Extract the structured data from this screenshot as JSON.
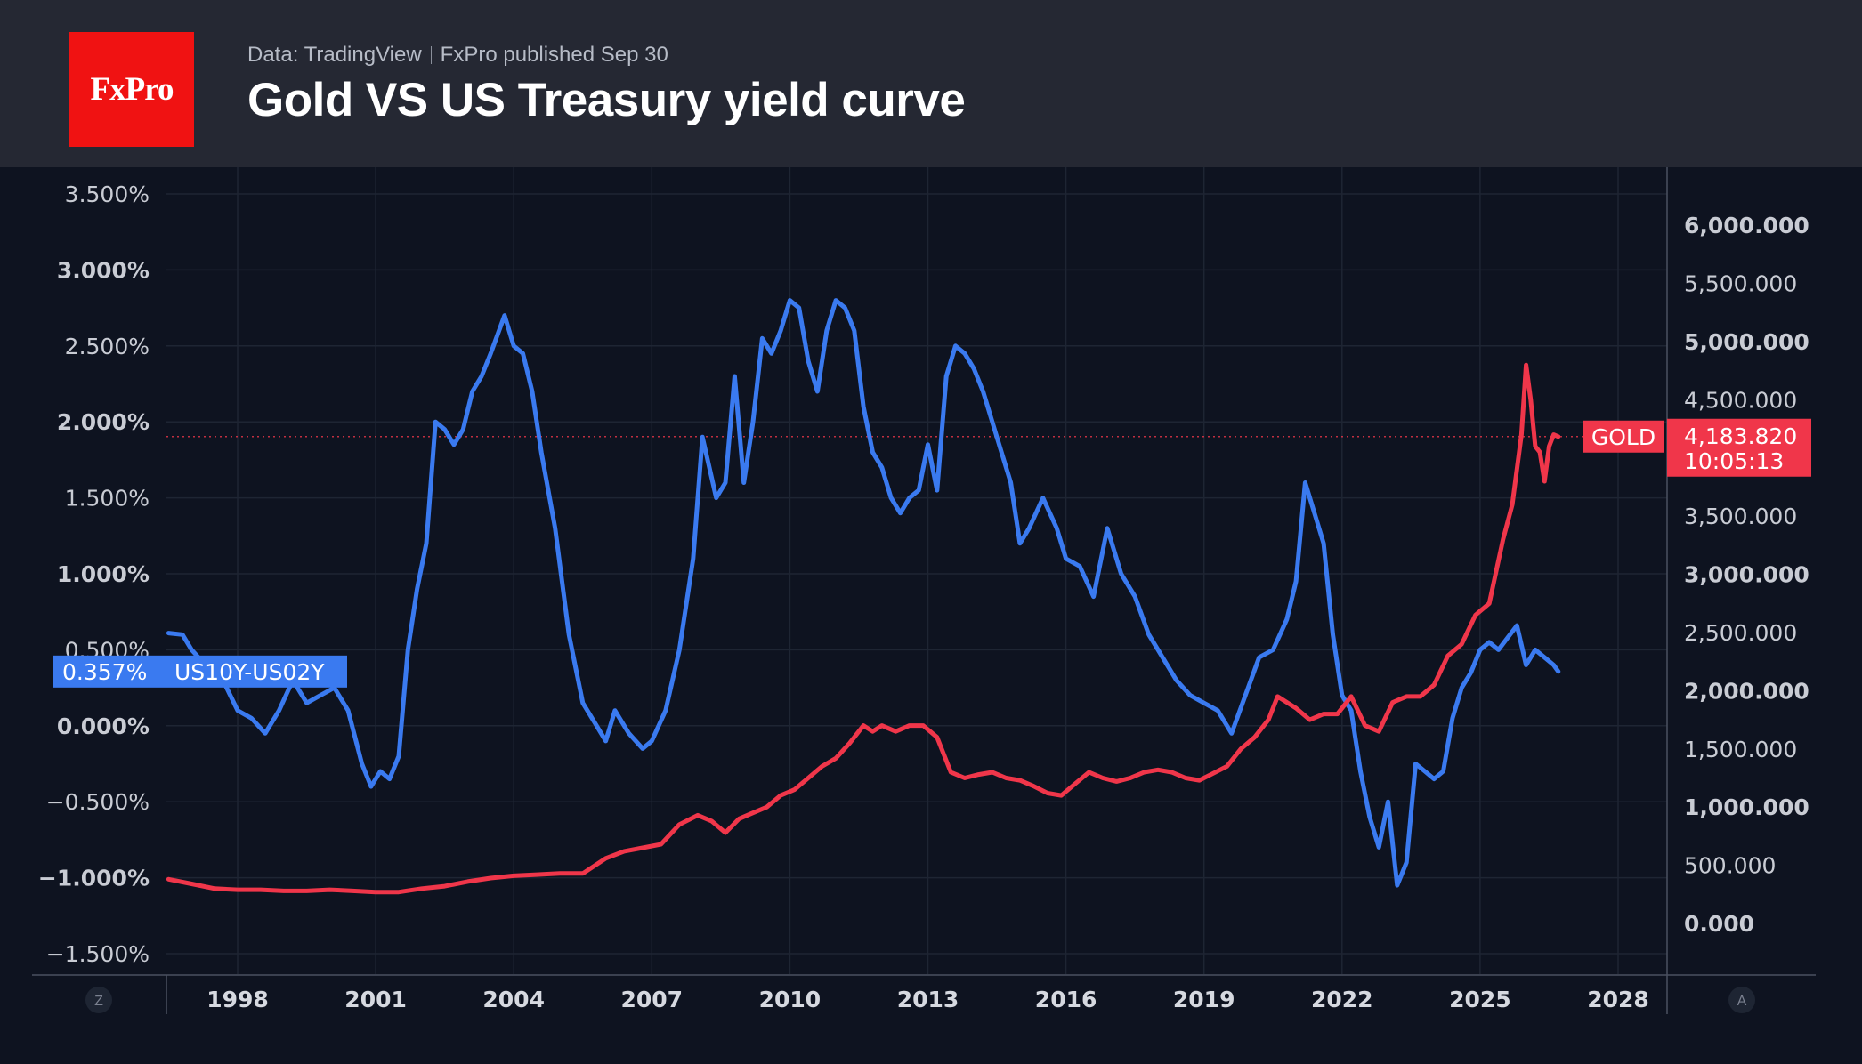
{
  "header": {
    "brand": "FxPro",
    "source": "Data: TradingView",
    "published": "FxPro published Sep 30",
    "title": "Gold VS US Treasury yield curve"
  },
  "colors": {
    "spread": "#3a7af0",
    "gold": "#f0364a",
    "background": "#0e1320",
    "header": "#252833",
    "grid": "#1e2533",
    "logo": "#f01212"
  },
  "icons": {
    "left_scale": "Z",
    "right_scale": "A"
  },
  "chart_data": {
    "type": "line",
    "x_ticks": [
      "1998",
      "2001",
      "2004",
      "2007",
      "2010",
      "2013",
      "2016",
      "2019",
      "2022",
      "2025",
      "2028"
    ],
    "x_tick_values": [
      1998,
      2001,
      2004,
      2007,
      2010,
      2013,
      2016,
      2019,
      2022,
      2025,
      2028
    ],
    "xlim": [
      1996.5,
      2029.0
    ],
    "left_axis": {
      "ticks": [
        "3.500%",
        "3.000%",
        "2.500%",
        "2.000%",
        "1.500%",
        "1.000%",
        "0.500%",
        "0.000%",
        "−0.500%",
        "−1.000%",
        "−1.500%"
      ],
      "tick_values": [
        3.5,
        3.0,
        2.5,
        2.0,
        1.5,
        1.0,
        0.5,
        0.0,
        -0.5,
        -1.0,
        -1.5
      ],
      "ylim": [
        -1.68,
        3.6
      ]
    },
    "right_axis": {
      "ticks": [
        "6,000.000",
        "5,500.000",
        "5,000.000",
        "4,500.000",
        "4,000.000",
        "3,500.000",
        "3,000.000",
        "2,500.000",
        "2,000.000",
        "1,500.000",
        "1,000.000",
        "500.000",
        "0.000"
      ],
      "tick_values": [
        6000,
        5500,
        5000,
        4500,
        4000,
        3500,
        3000,
        2500,
        2000,
        1500,
        1000,
        500,
        0
      ]
    },
    "series": [
      {
        "name": "US10Y-US02Y",
        "axis": "left",
        "last_value_label": "0.357%",
        "x": [
          1996.5,
          1996.8,
          1997.0,
          1997.3,
          1997.6,
          1998.0,
          1998.3,
          1998.6,
          1998.9,
          1999.2,
          1999.5,
          1999.8,
          2000.1,
          2000.4,
          2000.7,
          2000.9,
          2001.1,
          2001.3,
          2001.5,
          2001.7,
          2001.9,
          2002.1,
          2002.3,
          2002.5,
          2002.7,
          2002.9,
          2003.1,
          2003.3,
          2003.5,
          2003.8,
          2004.0,
          2004.2,
          2004.4,
          2004.6,
          2004.9,
          2005.2,
          2005.5,
          2005.8,
          2006.0,
          2006.2,
          2006.5,
          2006.8,
          2007.0,
          2007.3,
          2007.6,
          2007.9,
          2008.1,
          2008.4,
          2008.6,
          2008.8,
          2009.0,
          2009.2,
          2009.4,
          2009.6,
          2009.8,
          2010.0,
          2010.2,
          2010.4,
          2010.6,
          2010.8,
          2011.0,
          2011.2,
          2011.4,
          2011.6,
          2011.8,
          2012.0,
          2012.2,
          2012.4,
          2012.6,
          2012.8,
          2013.0,
          2013.2,
          2013.4,
          2013.6,
          2013.8,
          2014.0,
          2014.2,
          2014.5,
          2014.8,
          2015.0,
          2015.2,
          2015.5,
          2015.8,
          2016.0,
          2016.3,
          2016.6,
          2016.9,
          2017.2,
          2017.5,
          2017.8,
          2018.1,
          2018.4,
          2018.7,
          2019.0,
          2019.3,
          2019.6,
          2019.9,
          2020.2,
          2020.5,
          2020.8,
          2021.0,
          2021.2,
          2021.4,
          2021.6,
          2021.8,
          2022.0,
          2022.2,
          2022.4,
          2022.6,
          2022.8,
          2023.0,
          2023.2,
          2023.4,
          2023.6,
          2023.8,
          2024.0,
          2024.2,
          2024.4,
          2024.6,
          2024.8,
          2025.0,
          2025.2,
          2025.4,
          2025.6,
          2025.8,
          2026.0,
          2026.2,
          2026.4,
          2026.6,
          2026.7
        ],
        "values": [
          0.61,
          0.6,
          0.5,
          0.4,
          0.35,
          0.1,
          0.05,
          -0.05,
          0.1,
          0.3,
          0.15,
          0.2,
          0.25,
          0.1,
          -0.25,
          -0.4,
          -0.3,
          -0.35,
          -0.2,
          0.5,
          0.9,
          1.2,
          2.0,
          1.95,
          1.85,
          1.95,
          2.2,
          2.3,
          2.45,
          2.7,
          2.5,
          2.45,
          2.2,
          1.8,
          1.3,
          0.6,
          0.15,
          0.0,
          -0.1,
          0.1,
          -0.05,
          -0.15,
          -0.1,
          0.1,
          0.5,
          1.1,
          1.9,
          1.5,
          1.6,
          2.3,
          1.6,
          2.0,
          2.55,
          2.45,
          2.6,
          2.8,
          2.75,
          2.4,
          2.2,
          2.6,
          2.8,
          2.75,
          2.6,
          2.1,
          1.8,
          1.7,
          1.5,
          1.4,
          1.5,
          1.55,
          1.85,
          1.55,
          2.3,
          2.5,
          2.45,
          2.35,
          2.2,
          1.9,
          1.6,
          1.2,
          1.3,
          1.5,
          1.3,
          1.1,
          1.05,
          0.85,
          1.3,
          1.0,
          0.85,
          0.6,
          0.45,
          0.3,
          0.2,
          0.15,
          0.1,
          -0.05,
          0.2,
          0.45,
          0.5,
          0.7,
          0.95,
          1.6,
          1.4,
          1.2,
          0.6,
          0.2,
          0.1,
          -0.3,
          -0.6,
          -0.8,
          -0.5,
          -1.05,
          -0.9,
          -0.25,
          -0.3,
          -0.35,
          -0.3,
          0.05,
          0.25,
          0.35,
          0.5,
          0.55,
          0.5,
          0.58,
          0.66,
          0.4,
          0.5,
          0.45,
          0.4,
          0.357
        ]
      },
      {
        "name": "GOLD",
        "axis": "right",
        "last_value_label": "4,183.820",
        "countdown": "10:05:13",
        "x": [
          1996.5,
          1997.0,
          1997.5,
          1998.0,
          1998.5,
          1999.0,
          1999.5,
          2000.0,
          2000.5,
          2001.0,
          2001.5,
          2002.0,
          2002.5,
          2003.0,
          2003.5,
          2004.0,
          2004.5,
          2005.0,
          2005.5,
          2006.0,
          2006.4,
          2006.8,
          2007.2,
          2007.6,
          2008.0,
          2008.3,
          2008.6,
          2008.9,
          2009.2,
          2009.5,
          2009.8,
          2010.1,
          2010.4,
          2010.7,
          2011.0,
          2011.3,
          2011.6,
          2011.8,
          2012.0,
          2012.3,
          2012.6,
          2012.9,
          2013.2,
          2013.5,
          2013.8,
          2014.1,
          2014.4,
          2014.7,
          2015.0,
          2015.3,
          2015.6,
          2015.9,
          2016.2,
          2016.5,
          2016.8,
          2017.1,
          2017.4,
          2017.7,
          2018.0,
          2018.3,
          2018.6,
          2018.9,
          2019.2,
          2019.5,
          2019.8,
          2020.1,
          2020.4,
          2020.6,
          2020.8,
          2021.0,
          2021.3,
          2021.6,
          2021.9,
          2022.2,
          2022.5,
          2022.8,
          2023.1,
          2023.4,
          2023.7,
          2024.0,
          2024.3,
          2024.6,
          2024.9,
          2025.2,
          2025.5,
          2025.7,
          2025.9,
          2026.0,
          2026.1,
          2026.2,
          2026.3,
          2026.4,
          2026.5,
          2026.6,
          2026.7
        ],
        "values": [
          380,
          340,
          300,
          290,
          290,
          280,
          280,
          290,
          280,
          270,
          270,
          300,
          320,
          360,
          390,
          410,
          420,
          430,
          430,
          560,
          620,
          650,
          680,
          850,
          930,
          880,
          780,
          900,
          950,
          1000,
          1100,
          1150,
          1250,
          1350,
          1420,
          1550,
          1700,
          1650,
          1700,
          1650,
          1700,
          1700,
          1600,
          1300,
          1250,
          1280,
          1300,
          1250,
          1230,
          1180,
          1120,
          1100,
          1200,
          1300,
          1250,
          1220,
          1250,
          1300,
          1320,
          1300,
          1250,
          1230,
          1290,
          1350,
          1500,
          1600,
          1750,
          1950,
          1900,
          1850,
          1750,
          1800,
          1800,
          1950,
          1700,
          1650,
          1900,
          1950,
          1950,
          2050,
          2300,
          2400,
          2650,
          2750,
          3300,
          3600,
          4200,
          4800,
          4500,
          4100,
          4050,
          3800,
          4100,
          4200,
          4183.82
        ]
      }
    ],
    "price_line": {
      "series": "GOLD",
      "value": 4183.82
    }
  }
}
